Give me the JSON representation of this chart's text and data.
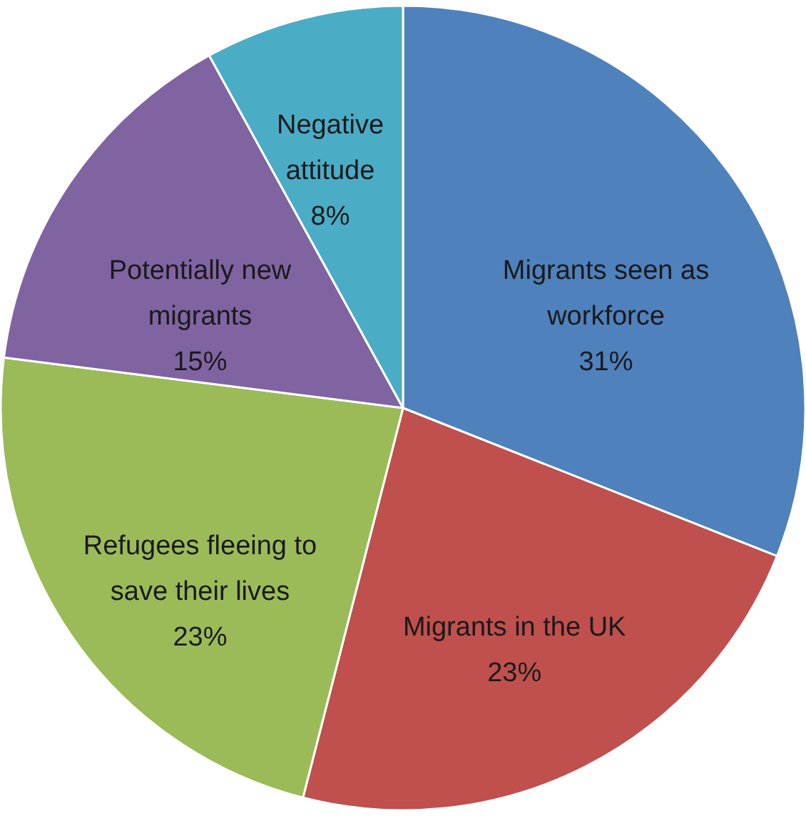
{
  "chart_data": {
    "type": "pie",
    "categories": [
      "Migrants seen as workforce",
      "Migrants in the UK",
      "Refugees fleeing to save their lives",
      "Potentially new migrants",
      "Negative attitude"
    ],
    "values": [
      31,
      23,
      23,
      15,
      8
    ],
    "colors": [
      "#4f81bd",
      "#c0504d",
      "#9bbb59",
      "#8064a2",
      "#4bacc6"
    ],
    "value_labels": [
      "31%",
      "23%",
      "23%",
      "15%",
      "8%"
    ]
  }
}
